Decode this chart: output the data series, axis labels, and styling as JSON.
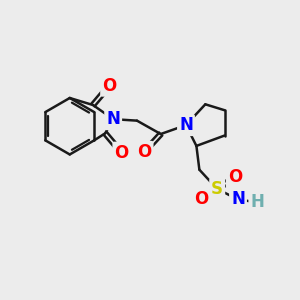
{
  "background_color": "#ececec",
  "bond_color": "#1a1a1a",
  "bond_width": 1.8,
  "atom_colors": {
    "O": "#ff0000",
    "N": "#0000ff",
    "S": "#cccc00",
    "C": "#1a1a1a",
    "H": "#6fafaf"
  },
  "font_size": 12,
  "font_size_H": 11
}
